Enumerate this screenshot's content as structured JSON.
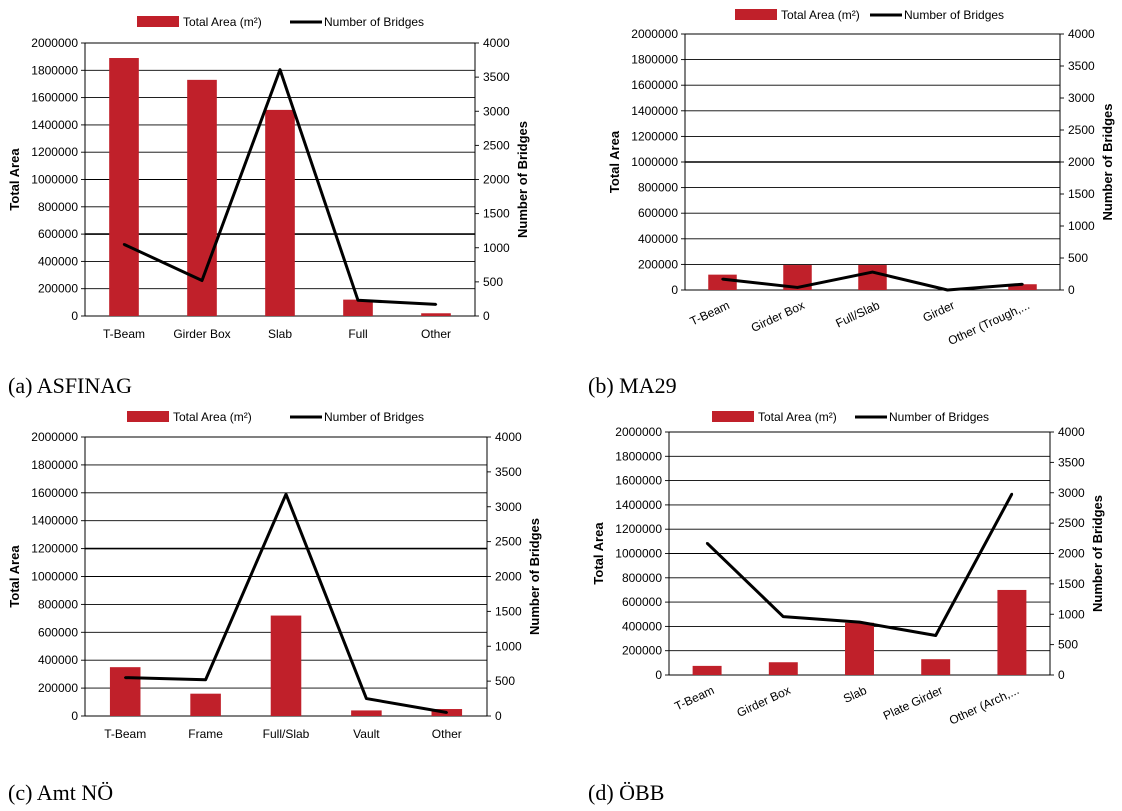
{
  "colors": {
    "bar": "#c0202a",
    "line": "#000000",
    "grid": "#000000"
  },
  "legend": {
    "bar_label": "Total Area (m²)",
    "line_label": "Number of Bridges"
  },
  "chart_data": [
    {
      "type": "bar",
      "caption": "(a) ASFINAG",
      "categories": [
        "T-Beam",
        "Girder Box",
        "Slab",
        "Full",
        "Other"
      ],
      "series": [
        {
          "name": "Total Area (m²)",
          "type": "bar",
          "axis": "left",
          "values": [
            1890000,
            1730000,
            1510000,
            120000,
            20000
          ]
        },
        {
          "name": "Number of Bridges",
          "type": "line",
          "axis": "right",
          "values": [
            1050,
            520,
            3610,
            230,
            170
          ]
        }
      ],
      "ylabel": "Total Area",
      "y2label": "Number of Bridges",
      "ylim": [
        0,
        2000000
      ],
      "y2lim": [
        0,
        4000
      ],
      "yticks": [
        "0",
        "200000",
        "400000",
        "600000",
        "800000",
        "1000000",
        "1200000",
        "1400000",
        "1600000",
        "1800000",
        "2000000"
      ],
      "y2ticks": [
        "0",
        "500",
        "1000",
        "1500",
        "2000",
        "2500",
        "3000",
        "3500",
        "4000"
      ],
      "legend_position": "top",
      "grid": true
    },
    {
      "type": "bar",
      "caption": "(b) MA29",
      "categories": [
        "T-Beam",
        "Girder Box",
        "Full/Slab",
        "Girder",
        "Other (Trough,..."
      ],
      "series": [
        {
          "name": "Total Area (m²)",
          "type": "bar",
          "axis": "left",
          "values": [
            120000,
            195000,
            195000,
            0,
            45000
          ]
        },
        {
          "name": "Number of Bridges",
          "type": "line",
          "axis": "right",
          "values": [
            170,
            40,
            280,
            0,
            90
          ]
        }
      ],
      "ylabel": "Total Area",
      "y2label": "Number of Bridges",
      "ylim": [
        0,
        2000000
      ],
      "y2lim": [
        0,
        4000
      ],
      "yticks": [
        "0",
        "200000",
        "400000",
        "600000",
        "800000",
        "1000000",
        "1200000",
        "1400000",
        "1600000",
        "1800000",
        "2000000"
      ],
      "y2ticks": [
        "0",
        "500",
        "1000",
        "1500",
        "2000",
        "2500",
        "3000",
        "3500",
        "4000"
      ],
      "legend_position": "top",
      "grid": true
    },
    {
      "type": "bar",
      "caption": "(c) Amt NÖ",
      "categories": [
        "T-Beam",
        "Frame",
        "Full/Slab",
        "Vault",
        "Other"
      ],
      "series": [
        {
          "name": "Total Area (m²)",
          "type": "bar",
          "axis": "left",
          "values": [
            350000,
            160000,
            720000,
            40000,
            50000
          ]
        },
        {
          "name": "Number of Bridges",
          "type": "line",
          "axis": "right",
          "values": [
            550,
            520,
            3180,
            250,
            50
          ]
        }
      ],
      "ylabel": "Total Area",
      "y2label": "Number of Bridges",
      "ylim": [
        0,
        2000000
      ],
      "y2lim": [
        0,
        4000
      ],
      "yticks": [
        "0",
        "200000",
        "400000",
        "600000",
        "800000",
        "1000000",
        "1200000",
        "1400000",
        "1600000",
        "1800000",
        "2000000"
      ],
      "y2ticks": [
        "0",
        "500",
        "1000",
        "1500",
        "2000",
        "2500",
        "3000",
        "3500",
        "4000"
      ],
      "legend_position": "top",
      "grid": true
    },
    {
      "type": "bar",
      "caption": "(d) ÖBB",
      "categories": [
        "T-Beam",
        "Girder Box",
        "Slab",
        "Plate Girder",
        "Other (Arch,..."
      ],
      "series": [
        {
          "name": "Total Area (m²)",
          "type": "bar",
          "axis": "left",
          "values": [
            75000,
            105000,
            430000,
            130000,
            700000
          ]
        },
        {
          "name": "Number of Bridges",
          "type": "line",
          "axis": "right",
          "values": [
            2170,
            960,
            870,
            650,
            2980
          ]
        }
      ],
      "ylabel": "Total Area",
      "y2label": "Number of Bridges",
      "ylim": [
        0,
        2000000
      ],
      "y2lim": [
        0,
        4000
      ],
      "yticks": [
        "0",
        "200000",
        "400000",
        "600000",
        "800000",
        "1000000",
        "1200000",
        "1400000",
        "1600000",
        "1800000",
        "2000000"
      ],
      "y2ticks": [
        "0",
        "500",
        "1000",
        "1500",
        "2000",
        "2500",
        "3000",
        "3500",
        "4000"
      ],
      "legend_position": "top",
      "grid": true
    }
  ]
}
